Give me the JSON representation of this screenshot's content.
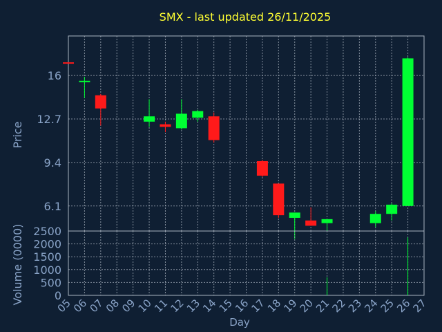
{
  "chart_data": {
    "type": "candlestick",
    "title": "SMX - last updated 26/11/2025",
    "xlabel": "Day",
    "ylabel_price": "Price",
    "ylabel_volume": "Volume (0000)",
    "x_ticks": [
      "05",
      "06",
      "07",
      "08",
      "09",
      "10",
      "11",
      "12",
      "13",
      "14",
      "15",
      "16",
      "17",
      "18",
      "19",
      "20",
      "21",
      "22",
      "23",
      "24",
      "25",
      "26",
      "27"
    ],
    "price_ticks": [
      6.1,
      9.4,
      12.7,
      16
    ],
    "price_ylim": [
      4.2,
      19.0
    ],
    "volume_ticks": [
      0,
      500,
      1000,
      1500,
      2000,
      2500
    ],
    "volume_ylim": [
      0,
      2500
    ],
    "grid": true,
    "colors": {
      "background": "#0f1f33",
      "grid": "#aab4c0",
      "axis_text": "#8aa4c8",
      "title": "#ffff33",
      "up": "#00ff33",
      "down": "#ff1a1a"
    },
    "candles": [
      {
        "day": "05",
        "open": 17.0,
        "high": 17.0,
        "low": 16.9,
        "close": 16.9
      },
      {
        "day": "06",
        "open": 15.5,
        "high": 15.9,
        "low": 14.3,
        "close": 15.6
      },
      {
        "day": "07",
        "open": 14.5,
        "high": 14.6,
        "low": 12.2,
        "close": 13.5
      },
      {
        "day": "10",
        "open": 12.5,
        "high": 14.2,
        "low": 12.1,
        "close": 12.9
      },
      {
        "day": "11",
        "open": 12.3,
        "high": 12.5,
        "low": 11.7,
        "close": 12.1
      },
      {
        "day": "12",
        "open": 12.0,
        "high": 14.2,
        "low": 11.9,
        "close": 13.1
      },
      {
        "day": "13",
        "open": 12.8,
        "high": 13.4,
        "low": 12.5,
        "close": 13.3
      },
      {
        "day": "14",
        "open": 12.9,
        "high": 13.2,
        "low": 10.9,
        "close": 11.1
      },
      {
        "day": "17",
        "open": 9.5,
        "high": 9.6,
        "low": 8.3,
        "close": 8.4
      },
      {
        "day": "18",
        "open": 7.8,
        "high": 7.8,
        "low": 5.2,
        "close": 5.4
      },
      {
        "day": "19",
        "open": 5.2,
        "high": 5.6,
        "low": 3.6,
        "close": 5.6
      },
      {
        "day": "20",
        "open": 5.0,
        "high": 6.0,
        "low": 4.6,
        "close": 4.6
      },
      {
        "day": "21",
        "open": 4.8,
        "high": 5.1,
        "low": 4.2,
        "close": 5.1
      },
      {
        "day": "24",
        "open": 4.8,
        "high": 5.7,
        "low": 4.5,
        "close": 5.5
      },
      {
        "day": "25",
        "open": 5.5,
        "high": 6.3,
        "low": 5.0,
        "close": 6.2
      },
      {
        "day": "26",
        "open": 6.1,
        "high": 17.4,
        "low": 6.1,
        "close": 17.3
      }
    ],
    "volume": [
      {
        "day": "05",
        "value": 0
      },
      {
        "day": "06",
        "value": 0
      },
      {
        "day": "07",
        "value": 0
      },
      {
        "day": "10",
        "value": 0
      },
      {
        "day": "11",
        "value": 0
      },
      {
        "day": "12",
        "value": 0
      },
      {
        "day": "13",
        "value": 0
      },
      {
        "day": "14",
        "value": 0
      },
      {
        "day": "17",
        "value": 0
      },
      {
        "day": "18",
        "value": 0
      },
      {
        "day": "19",
        "value": 0
      },
      {
        "day": "20",
        "value": 0
      },
      {
        "day": "21",
        "value": 700
      },
      {
        "day": "24",
        "value": 0
      },
      {
        "day": "25",
        "value": 0
      },
      {
        "day": "26",
        "value": 2250
      }
    ]
  }
}
